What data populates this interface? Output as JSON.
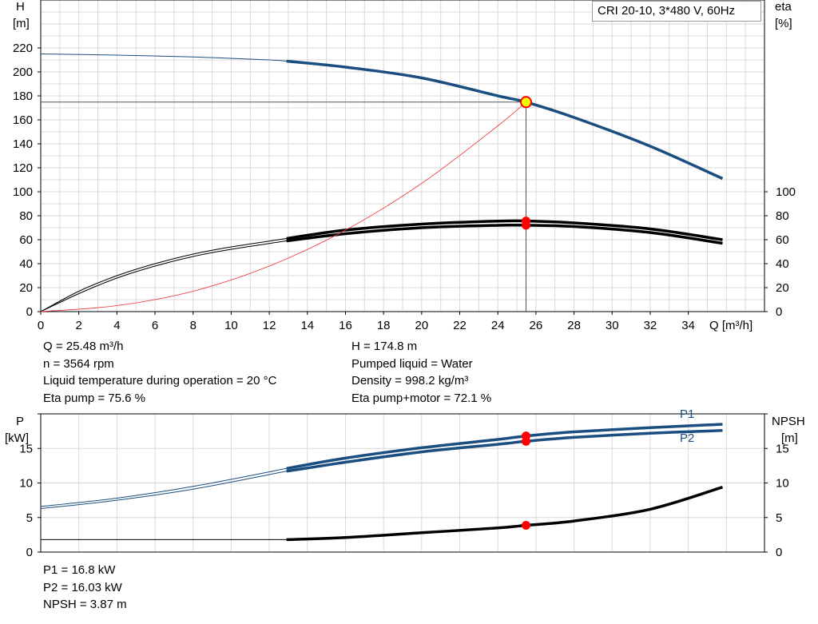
{
  "legend": "CRI 20-10, 3*480 V, 60Hz",
  "top_info_left": [
    "Q = 25.48 m³/h",
    "n = 3564 rpm",
    "Liquid temperature during operation = 20 °C",
    "Eta pump = 75.6 %"
  ],
  "top_info_right": [
    "H = 174.8 m",
    "Pumped liquid = Water",
    "Density = 998.2 kg/m³",
    "Eta pump+motor = 72.1 %"
  ],
  "bottom_info": [
    "P1 = 16.8 kW",
    "P2 = 16.03 kW",
    "NPSH = 3.87 m"
  ],
  "colors": {
    "head": "#1a4d80",
    "eta": "#000000",
    "system": "#ee3333",
    "op_point": "#ff0000",
    "op_point_head": "#ffff00",
    "grid": "#d8d8d8"
  },
  "chart_data": [
    {
      "type": "line",
      "xlabel": "Q [m³/h]",
      "ylabel": "H\n[m]",
      "ylabel_right": "eta\n[%]",
      "xlim": [
        0,
        38
      ],
      "ylim": [
        0,
        260
      ],
      "ylim_right": [
        0,
        260
      ],
      "x_ticks": [
        0,
        2,
        4,
        6,
        8,
        10,
        12,
        14,
        16,
        18,
        20,
        22,
        24,
        26,
        28,
        30,
        32,
        34
      ],
      "y_ticks": [
        0,
        20,
        40,
        60,
        80,
        100,
        120,
        140,
        160,
        180,
        200,
        220
      ],
      "y_ticks_right": [
        0,
        20,
        40,
        60,
        80,
        100
      ],
      "grid": true,
      "series": [
        {
          "name": "",
          "role": "head",
          "points": [
            [
              0,
              215
            ],
            [
              4,
              214
            ],
            [
              8,
              212.5
            ],
            [
              12,
              210
            ],
            [
              12.9,
              209
            ],
            [
              16,
              204
            ],
            [
              20,
              195
            ],
            [
              24,
              180
            ],
            [
              25.48,
              174.8
            ],
            [
              28,
              162
            ],
            [
              32,
              138
            ],
            [
              35.8,
              111
            ]
          ]
        },
        {
          "name": "",
          "role": "eta_pump",
          "points": [
            [
              0,
              0
            ],
            [
              2,
              17
            ],
            [
              4,
              30
            ],
            [
              6,
              40
            ],
            [
              8,
              48
            ],
            [
              10,
              54
            ],
            [
              12.9,
              61
            ],
            [
              16,
              68
            ],
            [
              20,
              73
            ],
            [
              24,
              75.5
            ],
            [
              25.48,
              75.6
            ],
            [
              28,
              74
            ],
            [
              32,
              69
            ],
            [
              35.8,
              60
            ]
          ]
        },
        {
          "name": "",
          "role": "eta_pump_motor",
          "points": [
            [
              0,
              0
            ],
            [
              2,
              15
            ],
            [
              4,
              28
            ],
            [
              6,
              38
            ],
            [
              8,
              46
            ],
            [
              10,
              52
            ],
            [
              12.9,
              59
            ],
            [
              16,
              65
            ],
            [
              20,
              70
            ],
            [
              24,
              72
            ],
            [
              25.48,
              72.1
            ],
            [
              28,
              71
            ],
            [
              32,
              66
            ],
            [
              35.8,
              57
            ]
          ]
        },
        {
          "name": "",
          "role": "system",
          "points": [
            [
              0,
              0
            ],
            [
              4,
              5
            ],
            [
              8,
              17
            ],
            [
              12,
              38
            ],
            [
              16,
              68
            ],
            [
              20,
              107
            ],
            [
              24,
              155
            ],
            [
              25.48,
              174.8
            ]
          ]
        }
      ],
      "operating_point": {
        "q": 25.48,
        "h": 174.8,
        "eta_pump": 75.6,
        "eta_pump_motor": 72.1
      }
    },
    {
      "type": "line",
      "xlabel": "",
      "ylabel": "P\n[kW]",
      "ylabel_right": "NPSH\n[m]",
      "xlim": [
        0,
        38
      ],
      "ylim": [
        0,
        20
      ],
      "ylim_right": [
        0,
        20
      ],
      "y_ticks": [
        0,
        5,
        10,
        15
      ],
      "y_ticks_right": [
        0,
        5,
        10,
        15
      ],
      "grid": true,
      "series": [
        {
          "name": "P1",
          "points": [
            [
              0,
              6.6
            ],
            [
              4,
              7.8
            ],
            [
              8,
              9.5
            ],
            [
              12.9,
              12.1
            ],
            [
              16,
              13.6
            ],
            [
              20,
              15.1
            ],
            [
              24,
              16.3
            ],
            [
              25.48,
              16.8
            ],
            [
              28,
              17.4
            ],
            [
              32,
              18.0
            ],
            [
              35.8,
              18.5
            ]
          ]
        },
        {
          "name": "P2",
          "points": [
            [
              0,
              6.3
            ],
            [
              4,
              7.5
            ],
            [
              8,
              9.1
            ],
            [
              12.9,
              11.7
            ],
            [
              16,
              13.0
            ],
            [
              20,
              14.5
            ],
            [
              24,
              15.6
            ],
            [
              25.48,
              16.03
            ],
            [
              28,
              16.6
            ],
            [
              32,
              17.2
            ],
            [
              35.8,
              17.6
            ]
          ]
        },
        {
          "name": "",
          "role": "npsh",
          "points": [
            [
              0,
              1.8
            ],
            [
              8,
              1.8
            ],
            [
              12.9,
              1.8
            ],
            [
              16,
              2.1
            ],
            [
              20,
              2.8
            ],
            [
              24,
              3.5
            ],
            [
              25.48,
              3.87
            ],
            [
              28,
              4.5
            ],
            [
              32,
              6.2
            ],
            [
              35.8,
              9.4
            ]
          ]
        }
      ],
      "operating_point": {
        "p1": 16.8,
        "p2": 16.03,
        "npsh": 3.87
      }
    }
  ]
}
